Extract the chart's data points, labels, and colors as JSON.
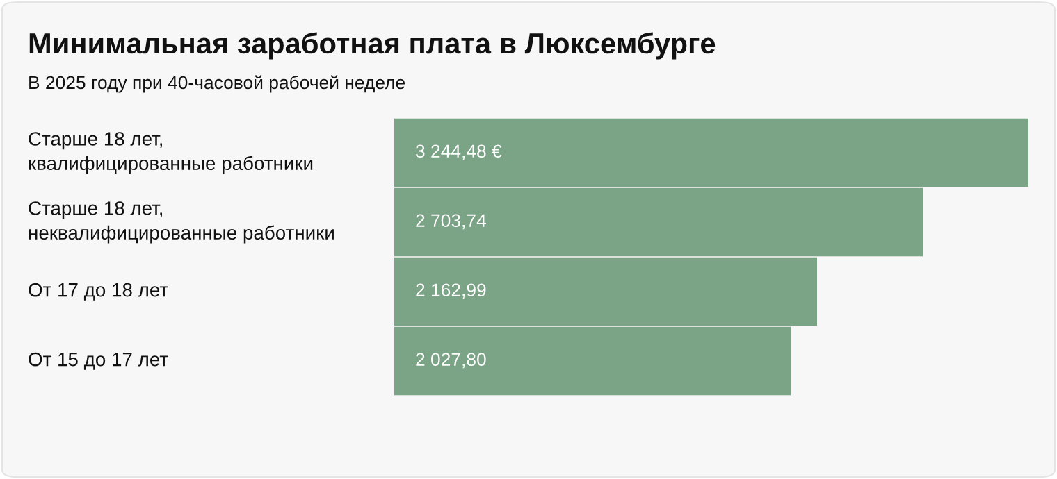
{
  "chart_data": {
    "type": "bar",
    "orientation": "horizontal",
    "title": "Минимальная заработная плата в Люксембурге",
    "subtitle": "В 2025 году при 40-часовой рабочей неделе",
    "categories": [
      "Старше 18 лет,\nквалифицированные работники",
      "Старше 18 лет,\nнеквалифицированные работники",
      "От 17 до 18 лет",
      "От 15 до 17 лет"
    ],
    "values": [
      3244.48,
      2703.74,
      2162.99,
      2027.8
    ],
    "value_labels": [
      "3 244,48 €",
      "2 703,74",
      "2 162,99",
      "2 027,80"
    ],
    "color": "#7ba386"
  }
}
